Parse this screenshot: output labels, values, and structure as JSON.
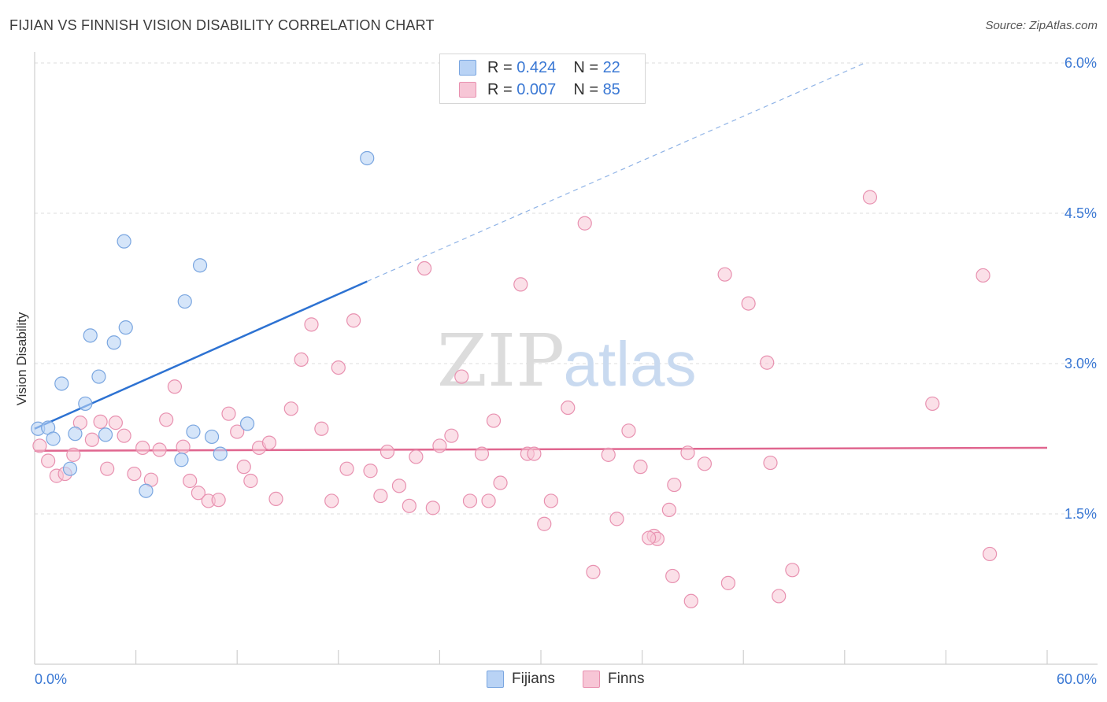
{
  "title": "FIJIAN VS FINNISH VISION DISABILITY CORRELATION CHART",
  "source": "Source: ZipAtlas.com",
  "watermark": {
    "zip": "ZIP",
    "atlas": "atlas"
  },
  "legend": {
    "r_label": "R =",
    "n_label": "N =",
    "fijians": {
      "r": "0.424",
      "n": "22"
    },
    "finns": {
      "r": "0.007",
      "n": "85"
    }
  },
  "colors": {
    "fijians_fill": "#b9d3f5",
    "fijians_stroke": "#7aa6e0",
    "fijians_line": "#2d72d2",
    "finns_fill": "#f7c6d6",
    "finns_stroke": "#e891b0",
    "finns_line": "#e0668f",
    "tick_label": "#3a78d4"
  },
  "chart_data": {
    "type": "scatter",
    "title": "FIJIAN VS FINNISH VISION DISABILITY CORRELATION CHART",
    "xlabel": "",
    "ylabel": "Vision Disability",
    "xlim": [
      0,
      60
    ],
    "ylim": [
      0,
      6.2
    ],
    "x_tick_labels": [
      "0.0%",
      "60.0%"
    ],
    "y_ticks": [
      1.5,
      3.0,
      4.5,
      6.0
    ],
    "y_tick_labels": [
      "1.5%",
      "3.0%",
      "4.5%",
      "6.0%"
    ],
    "series": [
      {
        "name": "Fijians",
        "points": [
          [
            0.2,
            2.35
          ],
          [
            0.8,
            2.36
          ],
          [
            1.1,
            2.25
          ],
          [
            1.6,
            2.8
          ],
          [
            2.1,
            1.95
          ],
          [
            2.4,
            2.3
          ],
          [
            3.0,
            2.6
          ],
          [
            3.3,
            3.28
          ],
          [
            3.8,
            2.87
          ],
          [
            4.2,
            2.29
          ],
          [
            4.7,
            3.21
          ],
          [
            5.3,
            4.22
          ],
          [
            5.4,
            3.36
          ],
          [
            6.6,
            1.73
          ],
          [
            8.7,
            2.04
          ],
          [
            8.9,
            3.62
          ],
          [
            9.4,
            2.32
          ],
          [
            9.8,
            3.98
          ],
          [
            10.5,
            2.27
          ],
          [
            11.0,
            2.1
          ],
          [
            12.6,
            2.4
          ],
          [
            19.7,
            5.05
          ]
        ],
        "trend": {
          "x": [
            0,
            19.7
          ],
          "y": [
            2.35,
            3.82
          ]
        },
        "trend_extension": {
          "x": [
            19.7,
            49.2
          ],
          "y": [
            3.82,
            6.0
          ]
        }
      },
      {
        "name": "Finns",
        "points": [
          [
            0.3,
            2.18
          ],
          [
            0.8,
            2.03
          ],
          [
            1.3,
            1.88
          ],
          [
            1.8,
            1.9
          ],
          [
            2.3,
            2.09
          ],
          [
            2.7,
            2.41
          ],
          [
            3.4,
            2.24
          ],
          [
            3.9,
            2.42
          ],
          [
            4.3,
            1.95
          ],
          [
            4.8,
            2.41
          ],
          [
            5.3,
            2.28
          ],
          [
            5.9,
            1.9
          ],
          [
            6.4,
            2.16
          ],
          [
            6.9,
            1.84
          ],
          [
            7.4,
            2.14
          ],
          [
            7.8,
            2.44
          ],
          [
            8.3,
            2.77
          ],
          [
            8.8,
            2.17
          ],
          [
            9.2,
            1.83
          ],
          [
            9.7,
            1.71
          ],
          [
            10.3,
            1.63
          ],
          [
            10.9,
            1.64
          ],
          [
            11.5,
            2.5
          ],
          [
            12.0,
            2.32
          ],
          [
            12.4,
            1.97
          ],
          [
            12.8,
            1.83
          ],
          [
            13.3,
            2.16
          ],
          [
            13.9,
            2.21
          ],
          [
            14.3,
            1.65
          ],
          [
            15.2,
            2.55
          ],
          [
            15.8,
            3.04
          ],
          [
            16.4,
            3.39
          ],
          [
            17.0,
            2.35
          ],
          [
            17.6,
            1.63
          ],
          [
            18.0,
            2.96
          ],
          [
            18.5,
            1.95
          ],
          [
            18.9,
            3.43
          ],
          [
            19.9,
            1.93
          ],
          [
            20.5,
            1.68
          ],
          [
            20.9,
            2.12
          ],
          [
            21.6,
            1.78
          ],
          [
            22.2,
            1.58
          ],
          [
            22.6,
            2.07
          ],
          [
            23.1,
            3.95
          ],
          [
            23.6,
            1.56
          ],
          [
            24.0,
            2.18
          ],
          [
            24.7,
            2.28
          ],
          [
            25.3,
            2.87
          ],
          [
            25.8,
            1.63
          ],
          [
            26.5,
            2.1
          ],
          [
            26.9,
            1.63
          ],
          [
            27.2,
            2.43
          ],
          [
            27.6,
            1.81
          ],
          [
            28.8,
            3.79
          ],
          [
            29.2,
            2.1
          ],
          [
            29.6,
            2.1
          ],
          [
            30.2,
            1.4
          ],
          [
            30.6,
            1.63
          ],
          [
            31.6,
            2.56
          ],
          [
            32.6,
            4.4
          ],
          [
            33.1,
            0.92
          ],
          [
            34.0,
            2.09
          ],
          [
            34.5,
            1.45
          ],
          [
            35.2,
            2.33
          ],
          [
            35.9,
            1.97
          ],
          [
            36.7,
            1.28
          ],
          [
            36.9,
            1.25
          ],
          [
            37.6,
            1.54
          ],
          [
            37.9,
            1.79
          ],
          [
            37.8,
            0.88
          ],
          [
            38.7,
            2.11
          ],
          [
            38.9,
            0.63
          ],
          [
            39.7,
            2.0
          ],
          [
            40.9,
            3.89
          ],
          [
            41.1,
            0.81
          ],
          [
            42.3,
            3.6
          ],
          [
            43.4,
            3.01
          ],
          [
            43.6,
            2.01
          ],
          [
            44.1,
            0.68
          ],
          [
            44.9,
            0.94
          ],
          [
            49.5,
            4.66
          ],
          [
            53.2,
            2.6
          ],
          [
            56.2,
            3.88
          ],
          [
            56.6,
            1.1
          ],
          [
            36.4,
            1.26
          ]
        ],
        "trend": {
          "x": [
            0,
            60
          ],
          "y": [
            2.13,
            2.16
          ]
        }
      }
    ]
  }
}
